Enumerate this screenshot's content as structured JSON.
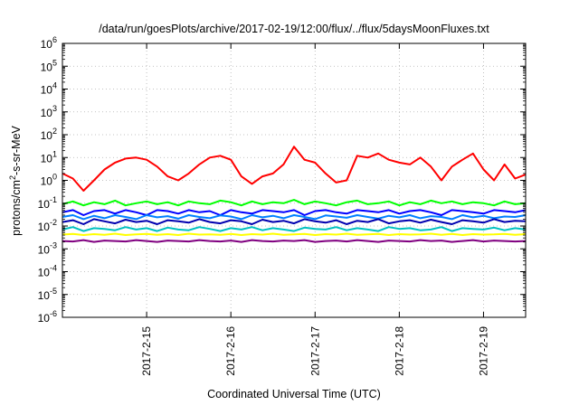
{
  "chart_data": {
    "type": "line",
    "title": "/data/run/goesPlots/archive/2017-02-19/12:00/flux/../flux/5daysMoonFluxes.txt",
    "xlabel": "Coordinated Universal Time (UTC)",
    "ylabel": {
      "prefix": "protons/cm",
      "sup": "2",
      "suffix": "-s-sr-MeV"
    },
    "x_scale": "time",
    "y_scale": "log",
    "xlim": [
      "2017-02-14T00:00",
      "2017-02-19T12:00"
    ],
    "ylim": [
      1e-06,
      1000000.0
    ],
    "grid": true,
    "x_ticks": [
      {
        "value": "2017-02-15",
        "label": "2017-2-15"
      },
      {
        "value": "2017-02-16",
        "label": "2017-2-16"
      },
      {
        "value": "2017-02-17",
        "label": "2017-2-17"
      },
      {
        "value": "2017-02-18",
        "label": "2017-2-18"
      },
      {
        "value": "2017-02-19",
        "label": "2017-2-19"
      }
    ],
    "y_ticks": [
      {
        "exp": "-6"
      },
      {
        "exp": "-5"
      },
      {
        "exp": "-4"
      },
      {
        "exp": "-3"
      },
      {
        "exp": "-2"
      },
      {
        "exp": "-1"
      },
      {
        "exp": "0"
      },
      {
        "exp": "1"
      },
      {
        "exp": "2"
      },
      {
        "exp": "3"
      },
      {
        "exp": "4"
      },
      {
        "exp": "5"
      },
      {
        "exp": "6"
      }
    ],
    "x": [
      "2017-02-14T00:00",
      "2017-02-14T03:00",
      "2017-02-14T06:00",
      "2017-02-14T09:00",
      "2017-02-14T12:00",
      "2017-02-14T15:00",
      "2017-02-14T18:00",
      "2017-02-14T21:00",
      "2017-02-15T00:00",
      "2017-02-15T03:00",
      "2017-02-15T06:00",
      "2017-02-15T09:00",
      "2017-02-15T12:00",
      "2017-02-15T15:00",
      "2017-02-15T18:00",
      "2017-02-15T21:00",
      "2017-02-16T00:00",
      "2017-02-16T03:00",
      "2017-02-16T06:00",
      "2017-02-16T09:00",
      "2017-02-16T12:00",
      "2017-02-16T15:00",
      "2017-02-16T18:00",
      "2017-02-16T21:00",
      "2017-02-17T00:00",
      "2017-02-17T03:00",
      "2017-02-17T06:00",
      "2017-02-17T09:00",
      "2017-02-17T12:00",
      "2017-02-17T15:00",
      "2017-02-17T18:00",
      "2017-02-17T21:00",
      "2017-02-18T00:00",
      "2017-02-18T03:00",
      "2017-02-18T06:00",
      "2017-02-18T09:00",
      "2017-02-18T12:00",
      "2017-02-18T15:00",
      "2017-02-18T18:00",
      "2017-02-18T21:00",
      "2017-02-19T00:00",
      "2017-02-19T03:00",
      "2017-02-19T06:00",
      "2017-02-19T09:00",
      "2017-02-19T12:00"
    ],
    "series": [
      {
        "color": "#ff0000",
        "values": [
          2.0,
          1.2,
          0.35,
          1.0,
          3.0,
          6.0,
          9.0,
          10.0,
          8.0,
          4.0,
          1.5,
          1.0,
          2.0,
          5.0,
          10.0,
          12.0,
          8.0,
          1.5,
          0.7,
          1.5,
          2.0,
          5.0,
          30.0,
          8.0,
          6.0,
          2.0,
          0.8,
          1.0,
          12.0,
          10.0,
          15.0,
          8.0,
          6.0,
          5.0,
          10.0,
          4.0,
          1.0,
          4.0,
          8.0,
          15.0,
          3.0,
          1.0,
          5.0,
          1.2,
          1.8
        ]
      },
      {
        "color": "#00ff00",
        "values": [
          0.09,
          0.12,
          0.08,
          0.11,
          0.09,
          0.13,
          0.08,
          0.1,
          0.12,
          0.09,
          0.11,
          0.08,
          0.12,
          0.1,
          0.09,
          0.13,
          0.11,
          0.08,
          0.12,
          0.09,
          0.11,
          0.1,
          0.14,
          0.09,
          0.12,
          0.1,
          0.08,
          0.11,
          0.13,
          0.09,
          0.1,
          0.12,
          0.08,
          0.11,
          0.09,
          0.13,
          0.1,
          0.12,
          0.09,
          0.11,
          0.1,
          0.08,
          0.12,
          0.09,
          0.1
        ]
      },
      {
        "color": "#0000ff",
        "values": [
          0.04,
          0.05,
          0.03,
          0.045,
          0.05,
          0.035,
          0.05,
          0.04,
          0.03,
          0.05,
          0.045,
          0.035,
          0.05,
          0.04,
          0.045,
          0.03,
          0.05,
          0.04,
          0.035,
          0.05,
          0.045,
          0.04,
          0.05,
          0.03,
          0.045,
          0.05,
          0.04,
          0.035,
          0.05,
          0.045,
          0.04,
          0.05,
          0.035,
          0.045,
          0.05,
          0.04,
          0.03,
          0.05,
          0.045,
          0.04,
          0.035,
          0.05,
          0.045,
          0.04,
          0.05
        ]
      },
      {
        "color": "#0080ff",
        "values": [
          0.025,
          0.03,
          0.02,
          0.028,
          0.022,
          0.03,
          0.025,
          0.02,
          0.03,
          0.024,
          0.027,
          0.021,
          0.03,
          0.025,
          0.022,
          0.029,
          0.026,
          0.02,
          0.03,
          0.024,
          0.028,
          0.022,
          0.03,
          0.025,
          0.02,
          0.029,
          0.026,
          0.023,
          0.03,
          0.025,
          0.021,
          0.028,
          0.024,
          0.03,
          0.022,
          0.027,
          0.025,
          0.02,
          0.03,
          0.024,
          0.028,
          0.022,
          0.026,
          0.025,
          0.03
        ]
      },
      {
        "color": "#0000b0",
        "values": [
          0.015,
          0.018,
          0.012,
          0.02,
          0.016,
          0.013,
          0.019,
          0.015,
          0.017,
          0.012,
          0.018,
          0.016,
          0.014,
          0.02,
          0.015,
          0.013,
          0.018,
          0.016,
          0.012,
          0.019,
          0.015,
          0.017,
          0.013,
          0.02,
          0.016,
          0.014,
          0.018,
          0.012,
          0.017,
          0.015,
          0.02,
          0.013,
          0.016,
          0.018,
          0.014,
          0.019,
          0.015,
          0.012,
          0.018,
          0.016,
          0.014,
          0.02,
          0.015,
          0.017,
          0.016
        ]
      },
      {
        "color": "#00c0c0",
        "values": [
          0.007,
          0.009,
          0.006,
          0.008,
          0.0075,
          0.0065,
          0.009,
          0.007,
          0.008,
          0.006,
          0.0085,
          0.007,
          0.0065,
          0.009,
          0.0075,
          0.006,
          0.008,
          0.007,
          0.009,
          0.0065,
          0.008,
          0.007,
          0.006,
          0.0085,
          0.0075,
          0.007,
          0.009,
          0.0065,
          0.008,
          0.007,
          0.006,
          0.009,
          0.0075,
          0.008,
          0.0065,
          0.007,
          0.009,
          0.006,
          0.008,
          0.0075,
          0.007,
          0.0085,
          0.0065,
          0.008,
          0.007
        ]
      },
      {
        "color": "#ffff00",
        "values": [
          0.0042,
          0.0045,
          0.004,
          0.0044,
          0.0041,
          0.0046,
          0.004,
          0.0043,
          0.0045,
          0.0041,
          0.0044,
          0.004,
          0.0046,
          0.0042,
          0.0043,
          0.0041,
          0.0045,
          0.004,
          0.0044,
          0.0042,
          0.0046,
          0.0041,
          0.0043,
          0.0045,
          0.004,
          0.0044,
          0.0042,
          0.0046,
          0.0041,
          0.0043,
          0.0045,
          0.004,
          0.0044,
          0.0042,
          0.0043,
          0.0046,
          0.0041,
          0.0045,
          0.004,
          0.0044,
          0.0042,
          0.0043,
          0.0045,
          0.0041,
          0.0044
        ]
      },
      {
        "color": "#800080",
        "values": [
          0.0022,
          0.0021,
          0.0024,
          0.002,
          0.0023,
          0.0022,
          0.0021,
          0.0024,
          0.0022,
          0.002,
          0.0023,
          0.0022,
          0.0021,
          0.0024,
          0.0022,
          0.0021,
          0.0023,
          0.002,
          0.0024,
          0.0022,
          0.0021,
          0.0023,
          0.0022,
          0.0024,
          0.002,
          0.0022,
          0.0023,
          0.0021,
          0.0024,
          0.0022,
          0.002,
          0.0023,
          0.0022,
          0.0021,
          0.0024,
          0.0022,
          0.0023,
          0.002,
          0.0022,
          0.0024,
          0.0021,
          0.0023,
          0.0022,
          0.0021,
          0.0022
        ]
      }
    ]
  }
}
